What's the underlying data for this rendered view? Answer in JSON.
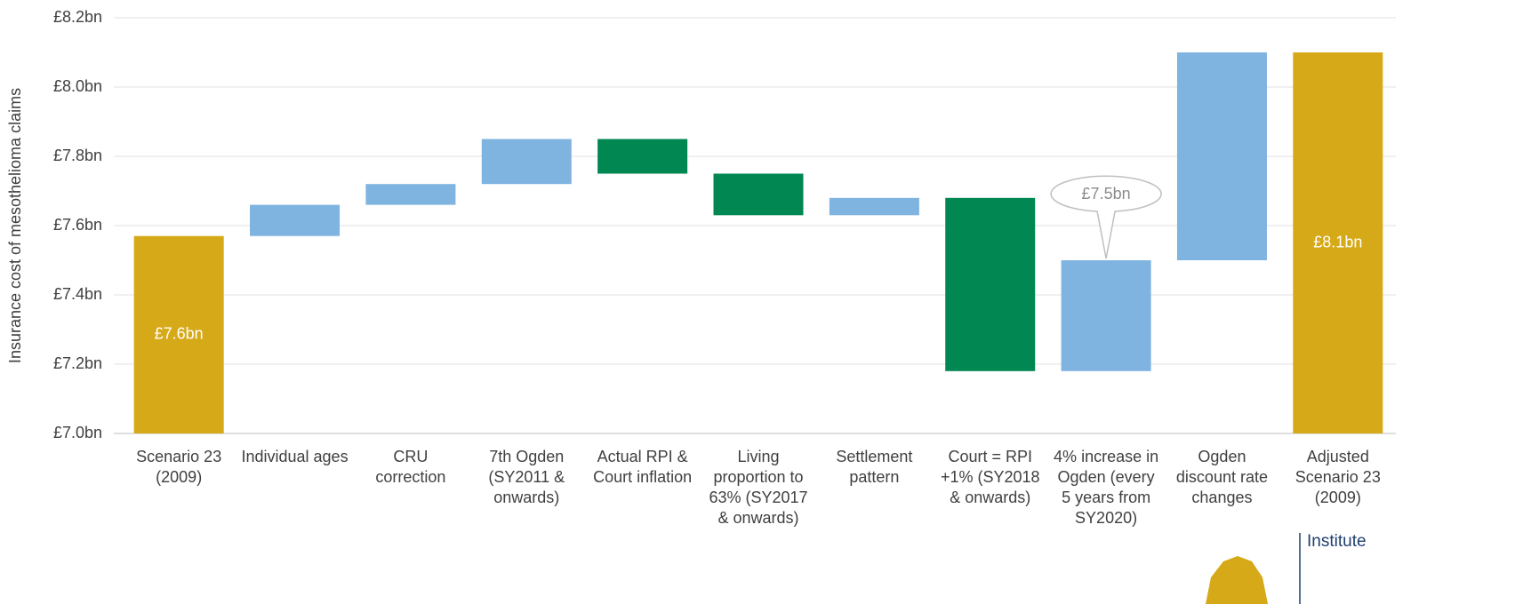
{
  "chart_data": {
    "type": "waterfall",
    "y_label": "Insurance cost of mesothelioma claims",
    "categories": [
      "Scenario 23 (2009)",
      "Individual ages",
      "CRU correction",
      "7th Ogden (SY2011 & onwards)",
      "Actual RPI & Court inflation",
      "Living proportion to 63% (SY2017 & onwards)",
      "Settlement pattern",
      "Court = RPI +1% (SY2018 & onwards)",
      "4% increase in Ogden (every 5 years from SY2020)",
      "Ogden discount rate changes",
      "Adjusted Scenario 23 (2009)"
    ],
    "measure": [
      "absolute",
      "relative",
      "relative",
      "relative",
      "relative",
      "relative",
      "relative",
      "relative",
      "relative",
      "relative",
      "total"
    ],
    "values": [
      7.57,
      0.09,
      0.06,
      0.13,
      -0.1,
      -0.12,
      0.05,
      -0.5,
      0.32,
      0.6,
      8.1
    ],
    "value_labels": [
      "£7.6bn",
      null,
      null,
      null,
      null,
      null,
      null,
      null,
      null,
      null,
      "£8.1bn"
    ],
    "annotations": [
      "£7.5bn"
    ],
    "total_color": "#d6a918",
    "increase_color": "#7fb3e0",
    "decrease_color": "#008752",
    "ylim": [
      7.0,
      8.2
    ],
    "yticks": [
      {
        "value": 7.0,
        "label": "£7.0bn"
      },
      {
        "value": 7.2,
        "label": "£7.2bn"
      },
      {
        "value": 7.4,
        "label": "£7.4bn"
      },
      {
        "value": 7.6,
        "label": "£7.6bn"
      },
      {
        "value": 7.8,
        "label": "£7.8bn"
      },
      {
        "value": 8.0,
        "label": "£8.0bn"
      },
      {
        "value": 8.2,
        "label": "£8.2bn"
      }
    ],
    "grid": true,
    "logo_text": "Institute"
  }
}
